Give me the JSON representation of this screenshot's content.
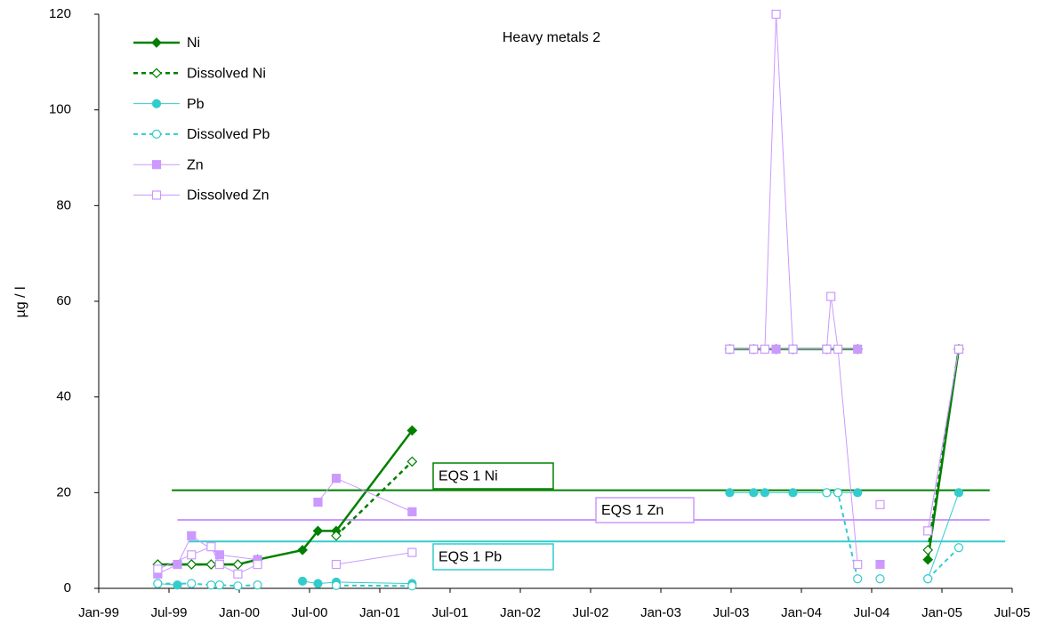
{
  "chart_data": {
    "type": "line",
    "title": "Heavy metals 2",
    "y_label": "µg / l",
    "xlim": [
      1999.0,
      2005.5
    ],
    "xticks": [
      {
        "value": 1999.0,
        "label": "Jan-99"
      },
      {
        "value": 1999.5,
        "label": "Jul-99"
      },
      {
        "value": 2000.0,
        "label": "Jan-00"
      },
      {
        "value": 2000.5,
        "label": "Jul-00"
      },
      {
        "value": 2001.0,
        "label": "Jan-01"
      },
      {
        "value": 2001.5,
        "label": "Jul-01"
      },
      {
        "value": 2002.0,
        "label": "Jan-02"
      },
      {
        "value": 2002.5,
        "label": "Jul-02"
      },
      {
        "value": 2003.0,
        "label": "Jan-03"
      },
      {
        "value": 2003.5,
        "label": "Jul-03"
      },
      {
        "value": 2004.0,
        "label": "Jan-04"
      },
      {
        "value": 2004.5,
        "label": "Jul-04"
      },
      {
        "value": 2005.0,
        "label": "Jan-05"
      },
      {
        "value": 2005.5,
        "label": "Jul-05"
      }
    ],
    "ylim": [
      0,
      120
    ],
    "yticks": [
      0,
      20,
      40,
      60,
      80,
      100,
      120
    ],
    "grid": false,
    "legend": "top-left",
    "series": [
      {
        "name": "Ni",
        "color": "#008000",
        "marker": "diamond",
        "filled": true,
        "dashed": false,
        "width": 2.5,
        "x": [
          1999.42,
          1999.66,
          1999.8,
          1999.99,
          2000.13,
          2000.45,
          2000.56,
          2000.69,
          2001.23,
          null,
          2003.49,
          2003.66,
          2003.82,
          2003.94,
          2004.18,
          2004.4,
          null,
          2004.9,
          2005.12
        ],
        "values": [
          5,
          5,
          5,
          5,
          6,
          8,
          12,
          12,
          33,
          null,
          50,
          50,
          50,
          50,
          50,
          50,
          null,
          6,
          50
        ]
      },
      {
        "name": "Dissolved Ni",
        "color": "#008000",
        "marker": "diamond",
        "filled": false,
        "dashed": true,
        "width": 2.5,
        "x": [
          1999.42,
          1999.66,
          1999.8,
          1999.99,
          2000.13,
          null,
          2000.69,
          2001.23,
          null,
          2004.9,
          2005.12
        ],
        "values": [
          5,
          5,
          5,
          5,
          6,
          null,
          11,
          26.5,
          null,
          8,
          50
        ]
      },
      {
        "name": "Pb",
        "color": "#33cccc",
        "marker": "circle",
        "filled": true,
        "dashed": false,
        "width": 1,
        "x": [
          1999.42,
          1999.56,
          null,
          2000.45,
          2000.56,
          2000.69,
          2001.23,
          null,
          2003.49,
          2003.66,
          2003.74,
          2003.94,
          2004.18,
          2004.26,
          2004.4,
          null,
          2004.9,
          2005.12
        ],
        "values": [
          1,
          0.7,
          null,
          1.5,
          1,
          1.3,
          1,
          null,
          20,
          20,
          20,
          20,
          20,
          20,
          20,
          null,
          2,
          20
        ]
      },
      {
        "name": "Dissolved Pb",
        "color": "#33cccc",
        "marker": "circle",
        "filled": false,
        "dashed": true,
        "width": 2,
        "x": [
          1999.42,
          1999.66,
          1999.8,
          1999.86,
          1999.99,
          2000.13,
          null,
          2000.69,
          2001.23,
          null,
          2004.18,
          2004.26,
          2004.4,
          null,
          2004.56,
          null,
          2004.9,
          2005.12
        ],
        "values": [
          1,
          1,
          0.7,
          0.7,
          0.5,
          0.7,
          null,
          0.6,
          0.5,
          null,
          20,
          20,
          2,
          null,
          2,
          null,
          2,
          8.5
        ]
      },
      {
        "name": "Zn",
        "color": "#cc99ff",
        "marker": "square",
        "filled": true,
        "dashed": false,
        "width": 1,
        "x": [
          1999.42,
          1999.56,
          1999.66,
          1999.86,
          2000.13,
          null,
          2000.56,
          2000.69,
          2001.23,
          null,
          2003.49,
          2003.66,
          2003.82,
          2003.94,
          2004.18,
          2004.4,
          null,
          2004.56,
          null,
          2004.9,
          2005.12
        ],
        "values": [
          3,
          5,
          11,
          7,
          6,
          null,
          18,
          23,
          16,
          null,
          50,
          50,
          50,
          50,
          50,
          50,
          null,
          5,
          null,
          12,
          50
        ]
      },
      {
        "name": "Dissolved Zn",
        "color": "#cc99ff",
        "marker": "square",
        "filled": false,
        "dashed": false,
        "width": 1,
        "x": [
          1999.42,
          1999.66,
          1999.8,
          1999.86,
          1999.99,
          2000.13,
          null,
          2000.69,
          2001.23,
          null,
          2003.49,
          2003.66,
          2003.74,
          2003.82,
          2003.94,
          2004.18,
          2004.21,
          2004.26,
          2004.4,
          null,
          2004.56,
          null,
          2004.9,
          2005.12
        ],
        "values": [
          4,
          7,
          8.7,
          5,
          3,
          5,
          null,
          5,
          7.5,
          null,
          50,
          50,
          50,
          120,
          50,
          50,
          61,
          50,
          5,
          null,
          17.5,
          null,
          12,
          50
        ]
      }
    ],
    "reference_lines": [
      {
        "label": "EQS 1 Ni",
        "value": 20.5,
        "color": "#008000",
        "x_start": 1999.52,
        "x_end": 2005.34
      },
      {
        "label": "EQS 1 Zn",
        "value": 14.3,
        "color": "#cc99ff",
        "x_start": 1999.56,
        "x_end": 2005.34
      },
      {
        "label": "EQS 1 Pb",
        "value": 9.8,
        "color": "#33cccc",
        "x_start": 1999.64,
        "x_end": 2005.45
      }
    ]
  }
}
